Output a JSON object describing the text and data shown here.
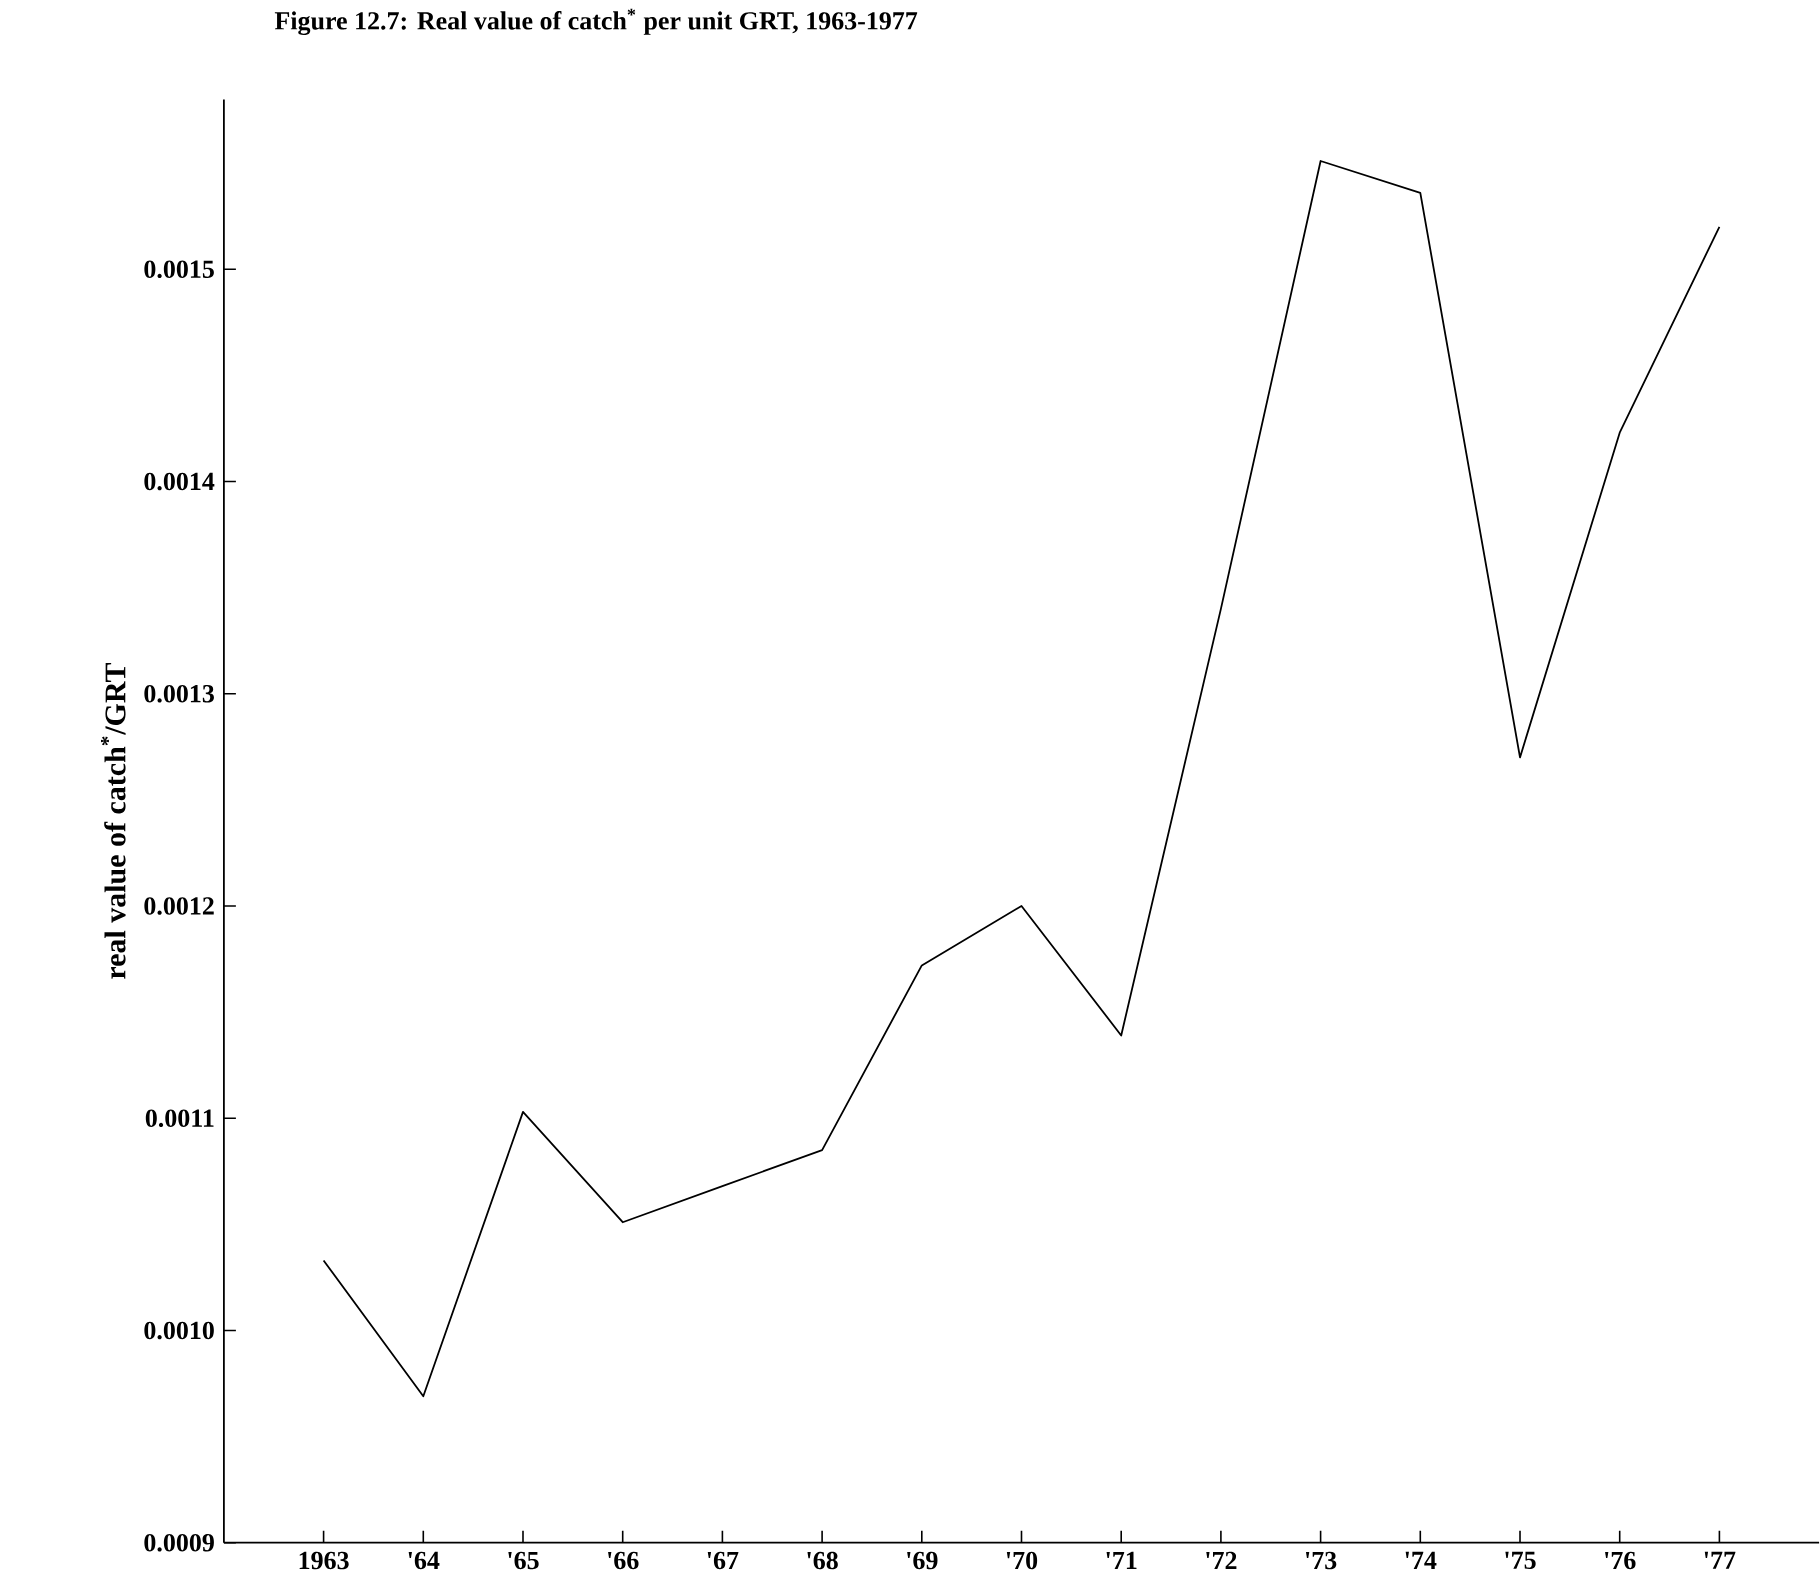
{
  "chart_data": {
    "type": "line",
    "title": "Figure 12.7:     Real value of catch$^{*}$ per unit GRT, 1963-1977",
    "ylabel": "real value of catch$^{*}$/GRT",
    "categories": [
      "1963",
      "'64",
      "'65",
      "'66",
      "'67",
      "'68",
      "'69",
      "'70",
      "'71",
      "'72",
      "'73",
      "'74",
      "'75",
      "'76",
      "'77"
    ],
    "series": [
      {
        "color": "#000000",
        "values": [
          0.001033,
          0.000969,
          0.001103,
          0.001051,
          0.001068,
          0.001085,
          0.001172,
          0.0012,
          0.001139,
          0.00134,
          0.001551,
          0.001536,
          0.00127,
          0.001423,
          0.00152
        ]
      }
    ],
    "ylim": [
      0.0009,
      0.00158
    ],
    "yticks": [
      {
        "value": 0.0009,
        "label": "0.0009"
      },
      {
        "value": 0.001,
        "label": "0.0010"
      },
      {
        "value": 0.0011,
        "label": "0.0011"
      },
      {
        "value": 0.0012,
        "label": "0.0012"
      },
      {
        "value": 0.0013,
        "label": "0.0013"
      },
      {
        "value": 0.0014,
        "label": "0.0014"
      },
      {
        "value": 0.0015,
        "label": "0.0015"
      }
    ],
    "line_style": "solid"
  }
}
